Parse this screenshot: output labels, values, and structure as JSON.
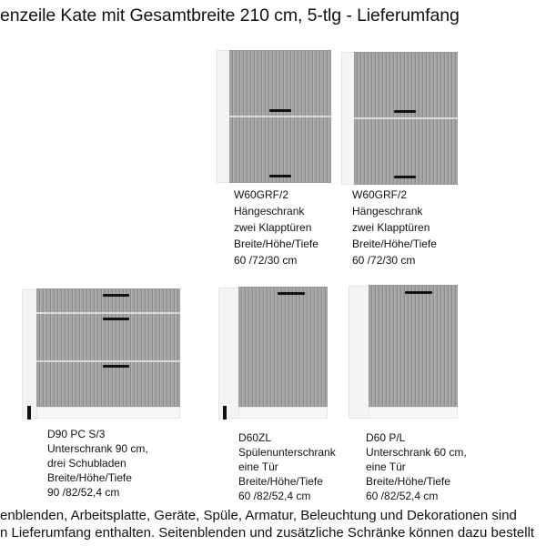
{
  "title": "enzeile Kate mit Gesamtbreite 210 cm, 5-tlg - Lieferumfang",
  "colors": {
    "front": "#a3a3a3",
    "handle": "#111111",
    "body": "#f4f4f4"
  },
  "cabinets": [
    {
      "lines": [
        "W60GRF/2",
        "Hängeschrank",
        "zwei Klapptüren",
        "Breite/Höhe/Tiefe",
        "60 /72/30 cm"
      ]
    },
    {
      "lines": [
        "W60GRF/2",
        "Hängeschrank",
        "zwei Klapptüren",
        "Breite/Höhe/Tiefe",
        "60 /72/30 cm"
      ]
    },
    {
      "lines": [
        "D90 PC S/3",
        "Unterschrank 90 cm,",
        "drei Schubladen",
        "Breite/Höhe/Tiefe",
        "90 /82/52,4 cm"
      ]
    },
    {
      "lines": [
        "D60ZL",
        "Spülenunterschrank",
        "eine Tür",
        "Breite/Höhe/Tiefe",
        "60 /82/52,4 cm"
      ]
    },
    {
      "lines": [
        "D60 P/L",
        "Unterschrank 60 cm,",
        "eine Tür",
        "Breite/Höhe/Tiefe",
        "60 /82/52,4 cm"
      ]
    }
  ],
  "footer": [
    "enblenden, Arbeitsplatte, Geräte, Spüle, Armatur, Beleuchtung und Dekorationen sind",
    "n Lieferumfang enthalten. Seitenblenden und zusätzliche Schränke können dazu bestellt"
  ]
}
